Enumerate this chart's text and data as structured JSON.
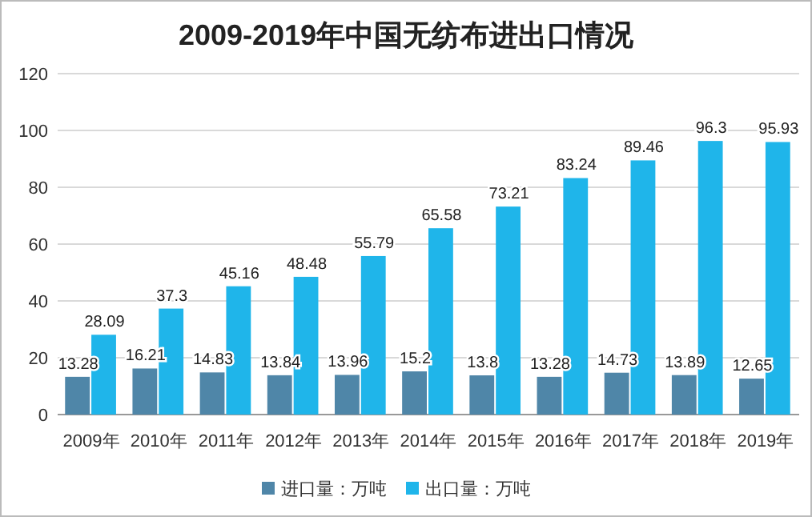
{
  "chart_data": {
    "type": "bar",
    "title": "2009-2019年中国无纺布进出口情况",
    "categories": [
      "2009年",
      "2010年",
      "2011年",
      "2012年",
      "2013年",
      "2014年",
      "2015年",
      "2016年",
      "2017年",
      "2018年",
      "2019年"
    ],
    "series": [
      {
        "name": "进口量：万吨",
        "color": "#4f86a8",
        "values": [
          13.28,
          16.21,
          14.83,
          13.84,
          13.96,
          15.2,
          13.8,
          13.28,
          14.73,
          13.89,
          12.65
        ]
      },
      {
        "name": "出口量：万吨",
        "color": "#1fb5ea",
        "values": [
          28.09,
          37.3,
          45.16,
          48.48,
          55.79,
          65.58,
          73.21,
          83.24,
          89.46,
          96.3,
          95.93
        ]
      }
    ],
    "ylim": [
      0,
      120
    ],
    "yticks": [
      0,
      20,
      40,
      60,
      80,
      100,
      120
    ],
    "grid": "y",
    "legend": "bottom",
    "data_labels": true
  }
}
